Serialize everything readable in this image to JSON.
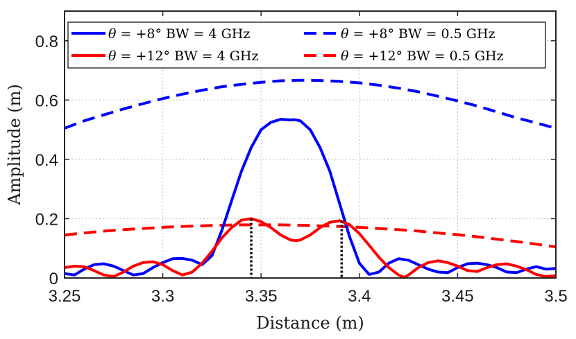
{
  "chart_data": {
    "type": "line",
    "title": "",
    "xlabel": "Distance (m)",
    "ylabel": "Amplitude (m)",
    "xlim": [
      3.25,
      3.5
    ],
    "ylim": [
      0,
      0.9
    ],
    "xticks": [
      3.25,
      3.3,
      3.35,
      3.4,
      3.45,
      3.5
    ],
    "xtick_labels": [
      "3.25",
      "3.3",
      "3.35",
      "3.4",
      "3.45",
      "3.5"
    ],
    "yticks": [
      0,
      0.2,
      0.4,
      0.6,
      0.8
    ],
    "ytick_labels": [
      "0",
      "0.2",
      "0.4",
      "0.6",
      "0.8"
    ],
    "grid": true,
    "legend_position": "top",
    "series": [
      {
        "name": "θ = +8° BW = 4 GHz",
        "color": "#0000ff",
        "dash": "solid",
        "x": [
          3.25,
          3.255,
          3.26,
          3.265,
          3.27,
          3.275,
          3.28,
          3.285,
          3.29,
          3.295,
          3.3,
          3.305,
          3.31,
          3.315,
          3.32,
          3.325,
          3.33,
          3.335,
          3.34,
          3.345,
          3.35,
          3.355,
          3.36,
          3.365,
          3.367,
          3.37,
          3.375,
          3.38,
          3.385,
          3.39,
          3.395,
          3.4,
          3.405,
          3.41,
          3.415,
          3.42,
          3.425,
          3.43,
          3.435,
          3.44,
          3.445,
          3.45,
          3.455,
          3.46,
          3.465,
          3.47,
          3.475,
          3.48,
          3.485,
          3.49,
          3.495,
          3.5
        ],
        "y": [
          0.015,
          0.01,
          0.03,
          0.045,
          0.048,
          0.04,
          0.025,
          0.01,
          0.015,
          0.035,
          0.052,
          0.065,
          0.066,
          0.06,
          0.045,
          0.075,
          0.16,
          0.26,
          0.36,
          0.44,
          0.5,
          0.525,
          0.535,
          0.533,
          0.534,
          0.53,
          0.5,
          0.44,
          0.36,
          0.25,
          0.14,
          0.05,
          0.012,
          0.02,
          0.05,
          0.065,
          0.06,
          0.045,
          0.03,
          0.02,
          0.018,
          0.035,
          0.048,
          0.05,
          0.045,
          0.035,
          0.02,
          0.018,
          0.03,
          0.038,
          0.03,
          0.032
        ]
      },
      {
        "name": "θ = +8° BW = 0.5 GHz",
        "color": "#0000ff",
        "dash": "dashed",
        "x": [
          3.25,
          3.26,
          3.27,
          3.28,
          3.29,
          3.3,
          3.31,
          3.32,
          3.33,
          3.34,
          3.35,
          3.36,
          3.37,
          3.38,
          3.39,
          3.4,
          3.41,
          3.42,
          3.43,
          3.44,
          3.45,
          3.46,
          3.47,
          3.48,
          3.49,
          3.5
        ],
        "y": [
          0.505,
          0.53,
          0.55,
          0.57,
          0.588,
          0.605,
          0.62,
          0.633,
          0.645,
          0.653,
          0.66,
          0.665,
          0.667,
          0.666,
          0.663,
          0.658,
          0.65,
          0.64,
          0.628,
          0.613,
          0.597,
          0.58,
          0.56,
          0.54,
          0.523,
          0.505
        ]
      },
      {
        "name": "θ = +12° BW = 4 GHz",
        "color": "#ff0000",
        "dash": "solid",
        "x": [
          3.25,
          3.255,
          3.26,
          3.265,
          3.27,
          3.275,
          3.28,
          3.285,
          3.29,
          3.295,
          3.3,
          3.305,
          3.31,
          3.315,
          3.32,
          3.325,
          3.33,
          3.335,
          3.34,
          3.345,
          3.35,
          3.355,
          3.36,
          3.365,
          3.368,
          3.37,
          3.375,
          3.38,
          3.385,
          3.39,
          3.395,
          3.4,
          3.405,
          3.41,
          3.415,
          3.42,
          3.423,
          3.425,
          3.43,
          3.435,
          3.44,
          3.445,
          3.45,
          3.455,
          3.46,
          3.465,
          3.47,
          3.475,
          3.48,
          3.485,
          3.49,
          3.495,
          3.5
        ],
        "y": [
          0.035,
          0.04,
          0.038,
          0.025,
          0.01,
          0.005,
          0.02,
          0.04,
          0.052,
          0.055,
          0.045,
          0.025,
          0.01,
          0.02,
          0.05,
          0.09,
          0.135,
          0.17,
          0.195,
          0.2,
          0.19,
          0.17,
          0.145,
          0.128,
          0.126,
          0.128,
          0.145,
          0.17,
          0.188,
          0.193,
          0.18,
          0.15,
          0.11,
          0.07,
          0.035,
          0.01,
          0.002,
          0.01,
          0.035,
          0.052,
          0.058,
          0.052,
          0.04,
          0.025,
          0.022,
          0.035,
          0.045,
          0.048,
          0.04,
          0.028,
          0.012,
          0.005,
          0.008
        ]
      },
      {
        "name": "θ = +12° BW = 0.5 GHz",
        "color": "#ff0000",
        "dash": "dashed",
        "x": [
          3.25,
          3.26,
          3.27,
          3.28,
          3.29,
          3.3,
          3.31,
          3.32,
          3.33,
          3.34,
          3.35,
          3.36,
          3.37,
          3.38,
          3.39,
          3.4,
          3.41,
          3.42,
          3.43,
          3.44,
          3.45,
          3.46,
          3.47,
          3.48,
          3.49,
          3.5
        ],
        "y": [
          0.145,
          0.152,
          0.158,
          0.163,
          0.167,
          0.171,
          0.174,
          0.176,
          0.178,
          0.179,
          0.179,
          0.179,
          0.178,
          0.176,
          0.174,
          0.171,
          0.167,
          0.163,
          0.158,
          0.152,
          0.146,
          0.139,
          0.131,
          0.123,
          0.114,
          0.105
        ]
      }
    ],
    "markers": [
      {
        "x": 3.345,
        "y": 0.2
      },
      {
        "x": 3.391,
        "y": 0.193
      }
    ]
  },
  "legend": [
    {
      "theta_value": "= +8°",
      "bw_label": "BW = 4 GHz",
      "color": "#0000ff",
      "dash": "solid"
    },
    {
      "theta_value": "= +8°",
      "bw_label": "BW = 0.5 GHz",
      "color": "#0000ff",
      "dash": "dashed"
    },
    {
      "theta_value": "= +12°",
      "bw_label": "BW = 4 GHz",
      "color": "#ff0000",
      "dash": "solid"
    },
    {
      "theta_value": "= +12°",
      "bw_label": "BW = 0.5 GHz",
      "color": "#ff0000",
      "dash": "dashed"
    }
  ]
}
